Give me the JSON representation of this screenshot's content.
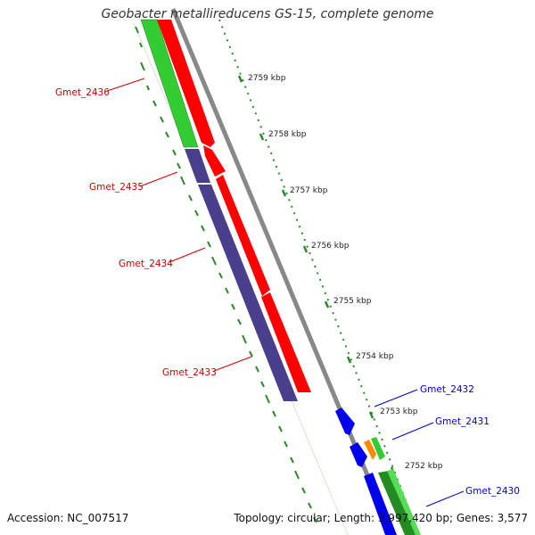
{
  "title": "Geobacter metallireducens GS-15, complete genome",
  "footer": {
    "accession_label": "Accession:",
    "accession": "NC_007517",
    "topology_label": "Topology:",
    "topology": "circular",
    "length_label": "Length:",
    "length": "3,997,420 bp",
    "genes_label": "Genes:",
    "genes": "3,577"
  },
  "ruler": {
    "unit": "kbp",
    "ticks": [
      "2759 kbp",
      "2758 kbp",
      "2757 kbp",
      "2756 kbp",
      "2755 kbp",
      "2754 kbp",
      "2753 kbp",
      "2752 kbp"
    ]
  },
  "colors": {
    "reverse_strand_label": "#cc0000",
    "forward_strand_label": "#0000cc",
    "cds_red": "#ff0000",
    "cds_green": "#33cc33",
    "cds_navy": "#4a3f8c",
    "cds_blue": "#0000ee",
    "cds_orange": "#ff8800",
    "cds_darkgreen": "#228b22",
    "backbone": "#888888",
    "tick": "#2a8a2a"
  },
  "genes": [
    {
      "label": "Gmet_2436",
      "strand": "reverse"
    },
    {
      "label": "Gmet_2435",
      "strand": "reverse"
    },
    {
      "label": "Gmet_2434",
      "strand": "reverse"
    },
    {
      "label": "Gmet_2433",
      "strand": "reverse"
    },
    {
      "label": "Gmet_2432",
      "strand": "forward"
    },
    {
      "label": "Gmet_2431",
      "strand": "forward"
    },
    {
      "label": "Gmet_2430",
      "strand": "forward"
    }
  ]
}
